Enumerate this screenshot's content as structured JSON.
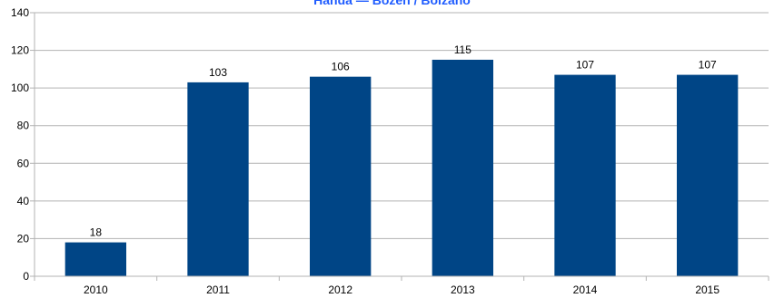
{
  "chart_data": {
    "type": "bar",
    "title": "Handa — Bozen / Bolzano",
    "categories": [
      "2010",
      "2011",
      "2012",
      "2013",
      "2014",
      "2015"
    ],
    "values": [
      18,
      103,
      106,
      115,
      107,
      107
    ],
    "ylim": [
      0,
      140
    ],
    "yticks": [
      0,
      20,
      40,
      60,
      80,
      100,
      120,
      140
    ],
    "grid": true,
    "xlabel": "",
    "ylabel": "",
    "colors": {
      "bar": "#004586",
      "grid": "#b3b3b3",
      "axis": "#b3b3b3",
      "title": "#1f5cff"
    }
  }
}
